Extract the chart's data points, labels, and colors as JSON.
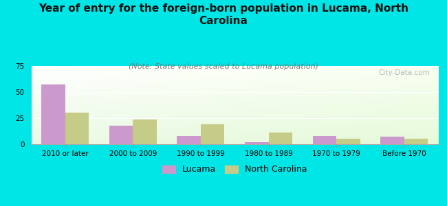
{
  "title": "Year of entry for the foreign-born population in Lucama, North\nCarolina",
  "subtitle": "(Note: State values scaled to Lucama population)",
  "categories": [
    "2010 or later",
    "2000 to 2009",
    "1990 to 1999",
    "1980 to 1989",
    "1970 to 1979",
    "Before 1970"
  ],
  "lucama_values": [
    57,
    18,
    8,
    2,
    8,
    7
  ],
  "nc_values": [
    30,
    24,
    19,
    11,
    5,
    5
  ],
  "lucama_color": "#cc99cc",
  "nc_color": "#c5cc88",
  "background_color": "#00e5e5",
  "ylim": [
    0,
    75
  ],
  "yticks": [
    0,
    25,
    50,
    75
  ],
  "bar_width": 0.35,
  "legend_lucama": "Lucama",
  "legend_nc": "North Carolina",
  "watermark": "City-Data.com",
  "title_fontsize": 11,
  "subtitle_fontsize": 8,
  "tick_fontsize": 7.5,
  "legend_fontsize": 9
}
